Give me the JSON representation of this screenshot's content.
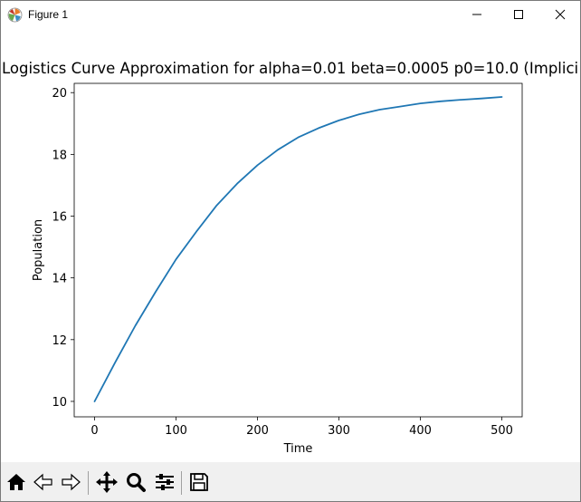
{
  "window": {
    "title": "Figure 1"
  },
  "toolbar": {
    "tools": [
      "home-icon",
      "back-arrow-icon",
      "forward-arrow-icon",
      "pan-move-icon",
      "zoom-magnifier-icon",
      "configure-subplots-icon",
      "save-floppy-icon"
    ]
  },
  "colors": {
    "line": "#1f77b4",
    "toolbar_bg": "#f0f0f0"
  },
  "chart_data": {
    "type": "line",
    "title": "Logistics Curve Approximation for alpha=0.01 beta=0.0005 p0=10.0 (Implici",
    "xlabel": "Time",
    "ylabel": "Population",
    "xlim": [
      -25,
      525
    ],
    "ylim": [
      9.5,
      20.3
    ],
    "xticks": [
      0,
      100,
      200,
      300,
      400,
      500
    ],
    "xtick_labels": [
      "0",
      "100",
      "200",
      "300",
      "400",
      "500"
    ],
    "yticks": [
      10,
      12,
      14,
      16,
      18,
      20
    ],
    "ytick_labels": [
      "10",
      "12",
      "14",
      "16",
      "18",
      "20"
    ],
    "grid": false,
    "series": [
      {
        "x": [
          0,
          25,
          50,
          75,
          100,
          125,
          150,
          175,
          200,
          225,
          250,
          275,
          300,
          325,
          350,
          375,
          400,
          425,
          450,
          475,
          500
        ],
        "y": [
          10.0,
          11.25,
          12.45,
          13.55,
          14.6,
          15.5,
          16.35,
          17.05,
          17.65,
          18.15,
          18.55,
          18.85,
          19.1,
          19.3,
          19.45,
          19.55,
          19.65,
          19.72,
          19.77,
          19.81,
          19.86
        ]
      }
    ]
  }
}
